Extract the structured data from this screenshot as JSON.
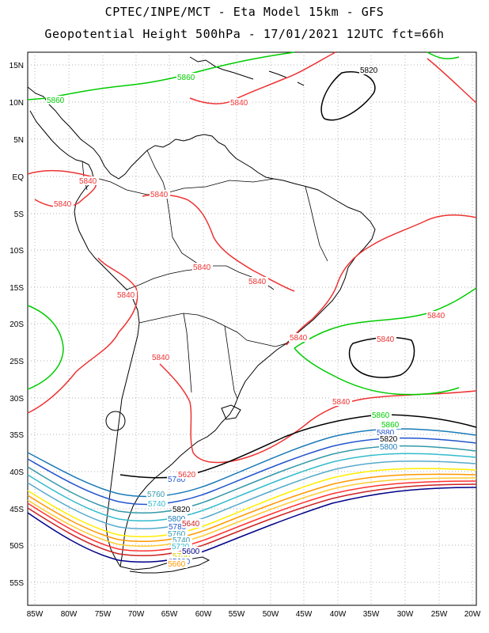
{
  "title_line1": "CPTEC/INPE/MCT -  Eta Model 15km - GFS",
  "title_line2": "Geopotential Height 500hPa - 17/01/2021 12UTC fct=66h",
  "lat_ticks": [
    "15N",
    "10N",
    "5N",
    "EQ",
    "5S",
    "10S",
    "15S",
    "20S",
    "25S",
    "30S",
    "35S",
    "40S",
    "45S",
    "50S",
    "55S"
  ],
  "lon_ticks": [
    "85W",
    "80W",
    "75W",
    "70W",
    "65W",
    "60W",
    "55W",
    "50W",
    "45W",
    "40W",
    "35W",
    "30W",
    "25W",
    "20W"
  ],
  "colors": {
    "c5880": "#000000",
    "c5860": "#00cc00",
    "c5840": "#ee3333",
    "c5820": "#000000",
    "c5800": "#1a7ab8",
    "c5780": "#2255cc",
    "c5760": "#3399aa",
    "c5740": "#33bbcc",
    "c5720": "#55aacc",
    "c5700": "#ffee00",
    "c5680": "#ff9900",
    "c5660": "#ffcc33",
    "c5640": "#ff3333",
    "c5620": "#cc2222",
    "c5600": "#000088"
  },
  "contour_labels": [
    {
      "text": "5820",
      "color": "#000000"
    },
    {
      "text": "5860",
      "color": "#00cc00"
    },
    {
      "text": "5860",
      "color": "#00cc00"
    },
    {
      "text": "5840",
      "color": "#ee3333"
    },
    {
      "text": "5840",
      "color": "#ee3333"
    },
    {
      "text": "5840",
      "color": "#ee3333"
    },
    {
      "text": "5840",
      "color": "#ee3333"
    },
    {
      "text": "5840",
      "color": "#ee3333"
    },
    {
      "text": "5840",
      "color": "#ee3333"
    },
    {
      "text": "5840",
      "color": "#ee3333"
    },
    {
      "text": "5840",
      "color": "#ee3333"
    },
    {
      "text": "5840",
      "color": "#ee3333"
    },
    {
      "text": "5840",
      "color": "#ee3333"
    },
    {
      "text": "5840",
      "color": "#ee3333"
    },
    {
      "text": "5840",
      "color": "#ee3333"
    },
    {
      "text": "5860",
      "color": "#00cc00"
    },
    {
      "text": "5860",
      "color": "#00cc00"
    },
    {
      "text": "5880",
      "color": "#2255cc"
    },
    {
      "text": "5820",
      "color": "#000000"
    },
    {
      "text": "5800",
      "color": "#1a7ab8"
    },
    {
      "text": "5780",
      "color": "#2255cc"
    },
    {
      "text": "5760",
      "color": "#3399aa"
    },
    {
      "text": "5740",
      "color": "#33bbcc"
    },
    {
      "text": "5820",
      "color": "#000000"
    },
    {
      "text": "5800",
      "color": "#1a7ab8"
    },
    {
      "text": "5780",
      "color": "#2255cc"
    },
    {
      "text": "5760",
      "color": "#3399aa"
    },
    {
      "text": "5740",
      "color": "#3399aa"
    },
    {
      "text": "5720",
      "color": "#33bbcc"
    },
    {
      "text": "5700",
      "color": "#ddcc00"
    },
    {
      "text": "5680",
      "color": "#2255cc"
    },
    {
      "text": "5660",
      "color": "#ff9900"
    },
    {
      "text": "5620",
      "color": "#ee3333"
    },
    {
      "text": "5640",
      "color": "#cc2222"
    },
    {
      "text": "5600",
      "color": "#000088"
    }
  ]
}
